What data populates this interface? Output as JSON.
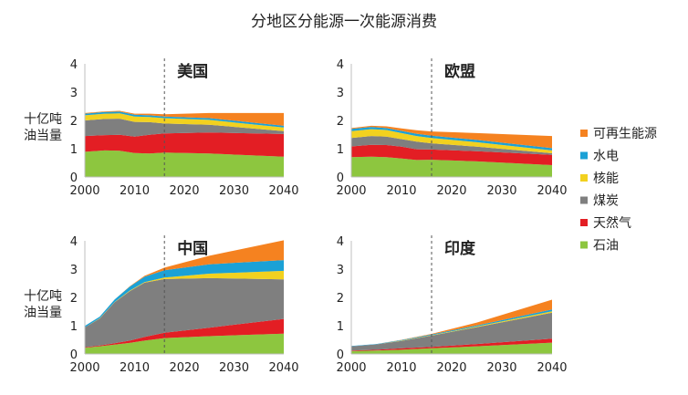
{
  "title": "分地区分能源一次能源消费",
  "ylabel_lines": [
    "十亿吨",
    "油当量"
  ],
  "legend": [
    {
      "key": "renewables",
      "label": "可再生能源",
      "color": "#F58220"
    },
    {
      "key": "hydro",
      "label": "水电",
      "color": "#1BA1D6"
    },
    {
      "key": "nuclear",
      "label": "核能",
      "color": "#F2D11F"
    },
    {
      "key": "coal",
      "label": "煤炭",
      "color": "#7F7F7F"
    },
    {
      "key": "gas",
      "label": "天然气",
      "color": "#E31E24"
    },
    {
      "key": "oil",
      "label": "石油",
      "color": "#8DC63F"
    }
  ],
  "chart_data": [
    {
      "type": "area",
      "name": "美国",
      "xlim": [
        2000,
        2040
      ],
      "ylim": [
        0,
        4
      ],
      "xticks": [
        2000,
        2010,
        2020,
        2030,
        2040
      ],
      "yticks": [
        0,
        1,
        2,
        3,
        4
      ],
      "projection_start": 2016,
      "x": [
        2000,
        2004,
        2007,
        2010,
        2013,
        2016,
        2025,
        2040
      ],
      "series": [
        {
          "name": "石油",
          "values": [
            0.89,
            0.94,
            0.93,
            0.85,
            0.83,
            0.86,
            0.83,
            0.72
          ]
        },
        {
          "name": "天然气",
          "values": [
            0.56,
            0.54,
            0.56,
            0.58,
            0.66,
            0.68,
            0.74,
            0.8
          ]
        },
        {
          "name": "煤炭",
          "values": [
            0.55,
            0.57,
            0.57,
            0.52,
            0.45,
            0.35,
            0.28,
            0.1
          ]
        },
        {
          "name": "核能",
          "values": [
            0.18,
            0.19,
            0.19,
            0.19,
            0.18,
            0.19,
            0.17,
            0.13
          ]
        },
        {
          "name": "水电",
          "values": [
            0.06,
            0.06,
            0.06,
            0.06,
            0.06,
            0.06,
            0.06,
            0.06
          ]
        },
        {
          "name": "可再生能源",
          "values": [
            0.02,
            0.02,
            0.03,
            0.04,
            0.06,
            0.08,
            0.18,
            0.45
          ]
        }
      ]
    },
    {
      "type": "area",
      "name": "欧盟",
      "xlim": [
        2000,
        2040
      ],
      "ylim": [
        0,
        4
      ],
      "xticks": [
        2000,
        2010,
        2020,
        2030,
        2040
      ],
      "yticks": [
        0,
        1,
        2,
        3,
        4
      ],
      "projection_start": 2016,
      "x": [
        2000,
        2004,
        2007,
        2010,
        2013,
        2016,
        2025,
        2040
      ],
      "series": [
        {
          "name": "石油",
          "values": [
            0.7,
            0.72,
            0.7,
            0.65,
            0.6,
            0.61,
            0.55,
            0.42
          ]
        },
        {
          "name": "天然气",
          "values": [
            0.38,
            0.42,
            0.43,
            0.42,
            0.38,
            0.36,
            0.36,
            0.36
          ]
        },
        {
          "name": "煤炭",
          "values": [
            0.3,
            0.31,
            0.3,
            0.27,
            0.27,
            0.22,
            0.16,
            0.06
          ]
        },
        {
          "name": "核能",
          "values": [
            0.24,
            0.24,
            0.23,
            0.21,
            0.2,
            0.19,
            0.16,
            0.1
          ]
        },
        {
          "name": "水电",
          "values": [
            0.08,
            0.08,
            0.07,
            0.08,
            0.08,
            0.08,
            0.08,
            0.08
          ]
        },
        {
          "name": "可再生能源",
          "values": [
            0.03,
            0.04,
            0.06,
            0.09,
            0.12,
            0.15,
            0.24,
            0.43
          ]
        }
      ]
    },
    {
      "type": "area",
      "name": "中国",
      "xlim": [
        2000,
        2040
      ],
      "ylim": [
        0,
        4
      ],
      "xticks": [
        2000,
        2010,
        2020,
        2030,
        2040
      ],
      "yticks": [
        0,
        1,
        2,
        3,
        4
      ],
      "projection_start": 2016,
      "x": [
        2000,
        2003,
        2006,
        2009,
        2012,
        2016,
        2025,
        2040
      ],
      "series": [
        {
          "name": "石油",
          "values": [
            0.22,
            0.27,
            0.33,
            0.39,
            0.47,
            0.56,
            0.63,
            0.72
          ]
        },
        {
          "name": "天然气",
          "values": [
            0.02,
            0.03,
            0.05,
            0.08,
            0.13,
            0.19,
            0.3,
            0.52
          ]
        },
        {
          "name": "煤炭",
          "values": [
            0.7,
            0.95,
            1.45,
            1.75,
            1.92,
            1.9,
            1.75,
            1.4
          ]
        },
        {
          "name": "核能",
          "values": [
            0.0,
            0.01,
            0.01,
            0.02,
            0.02,
            0.05,
            0.16,
            0.3
          ]
        },
        {
          "name": "水电",
          "values": [
            0.05,
            0.06,
            0.09,
            0.14,
            0.19,
            0.26,
            0.33,
            0.38
          ]
        },
        {
          "name": "可再生能源",
          "values": [
            0.0,
            0.0,
            0.0,
            0.01,
            0.03,
            0.09,
            0.3,
            0.7
          ]
        }
      ]
    },
    {
      "type": "area",
      "name": "印度",
      "xlim": [
        2000,
        2040
      ],
      "ylim": [
        0,
        4
      ],
      "xticks": [
        2000,
        2010,
        2020,
        2030,
        2040
      ],
      "yticks": [
        0,
        1,
        2,
        3,
        4
      ],
      "projection_start": 2016,
      "x": [
        2000,
        2005,
        2010,
        2016,
        2025,
        2040
      ],
      "series": [
        {
          "name": "石油",
          "values": [
            0.1,
            0.12,
            0.15,
            0.2,
            0.27,
            0.4
          ]
        },
        {
          "name": "天然气",
          "values": [
            0.02,
            0.03,
            0.05,
            0.05,
            0.08,
            0.14
          ]
        },
        {
          "name": "煤炭",
          "values": [
            0.15,
            0.19,
            0.26,
            0.4,
            0.6,
            0.92
          ]
        },
        {
          "name": "核能",
          "values": [
            0.0,
            0.0,
            0.01,
            0.01,
            0.02,
            0.05
          ]
        },
        {
          "name": "水电",
          "values": [
            0.01,
            0.01,
            0.02,
            0.03,
            0.04,
            0.06
          ]
        },
        {
          "name": "可再生能源",
          "values": [
            0.0,
            0.0,
            0.01,
            0.02,
            0.1,
            0.35
          ]
        }
      ]
    }
  ]
}
